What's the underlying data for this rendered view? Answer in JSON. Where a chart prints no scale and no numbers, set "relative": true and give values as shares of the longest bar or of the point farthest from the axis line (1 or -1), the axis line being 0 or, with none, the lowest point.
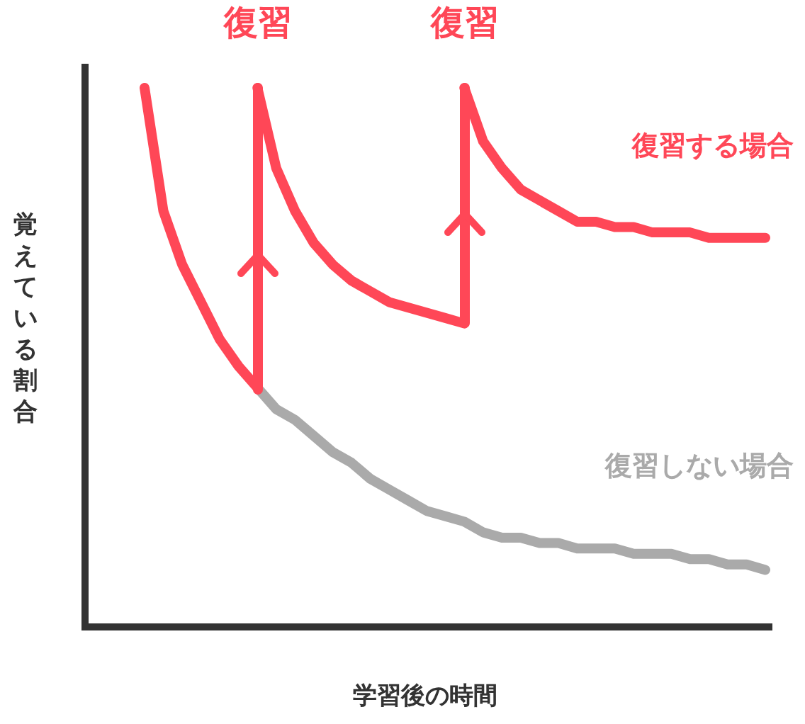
{
  "chart_data": {
    "type": "line",
    "relative": true,
    "xlabel": "学習後の時間",
    "ylabel": "覚えている割合",
    "grid": false,
    "legend": false,
    "marker": "none",
    "annotations": [
      "復習",
      "復習"
    ],
    "categories": [
      null,
      null,
      null,
      null,
      null,
      null,
      null,
      null,
      null,
      null,
      null,
      null,
      null,
      null,
      null,
      null,
      null,
      null,
      null,
      null,
      null,
      null,
      null,
      null,
      null,
      null,
      null,
      null,
      null,
      null,
      null,
      null,
      null,
      null
    ],
    "series": [
      {
        "color": "#ff4757",
        "values": [
          1.0,
          0.77,
          0.67,
          0.6,
          0.53,
          0.48,
          0.44,
          null,
          null,
          null,
          null,
          null,
          null,
          null,
          null,
          null,
          null,
          null,
          null,
          null,
          null,
          null,
          null,
          null,
          null,
          null,
          null,
          null,
          null,
          null,
          null,
          null,
          null,
          null
        ]
      },
      {
        "color": "#ff4757",
        "values": [
          null,
          null,
          null,
          null,
          null,
          null,
          1.0,
          0.85,
          0.77,
          0.71,
          0.67,
          0.64,
          0.62,
          0.6,
          0.59,
          0.58,
          0.57,
          0.56,
          null,
          null,
          null,
          null,
          null,
          null,
          null,
          null,
          null,
          null,
          null,
          null,
          null,
          null,
          null,
          null
        ]
      },
      {
        "name": "復習する場合",
        "color": "#ff4757",
        "values": [
          null,
          null,
          null,
          null,
          null,
          null,
          null,
          null,
          null,
          null,
          null,
          null,
          null,
          null,
          null,
          null,
          null,
          1.0,
          0.9,
          0.85,
          0.81,
          0.79,
          0.77,
          0.75,
          0.75,
          0.74,
          0.74,
          0.73,
          0.73,
          0.73,
          0.72,
          0.72,
          0.72,
          0.72
        ]
      },
      {
        "name": "復習しない場合",
        "color": "#aaaaaa",
        "values": [
          null,
          null,
          null,
          null,
          null,
          null,
          0.44,
          0.4,
          0.38,
          0.35,
          0.32,
          0.3,
          0.27,
          0.25,
          0.23,
          0.21,
          0.2,
          0.19,
          0.17,
          0.16,
          0.16,
          0.15,
          0.15,
          0.14,
          0.14,
          0.14,
          0.13,
          0.13,
          0.13,
          0.12,
          0.12,
          0.11,
          0.11,
          0.1
        ]
      }
    ]
  }
}
